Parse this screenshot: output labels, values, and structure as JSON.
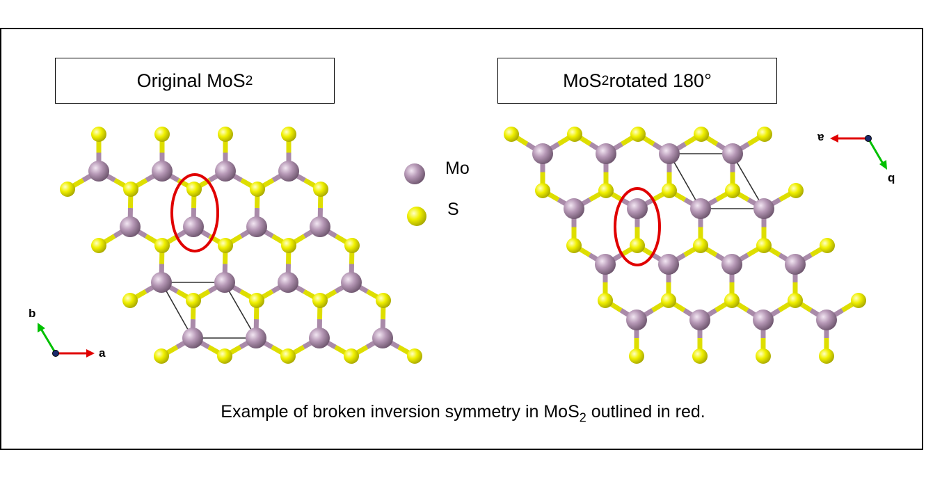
{
  "left_panel": {
    "title_main": "Original MoS",
    "title_sub": "2",
    "title_tail": ""
  },
  "right_panel": {
    "title_main": "MoS",
    "title_sub": "2",
    "title_tail": " rotated 180°"
  },
  "legend": [
    {
      "element": "Mo",
      "color": "#b08fb0"
    },
    {
      "element": "S",
      "color": "#e6e600"
    }
  ],
  "axes_left": {
    "a_label": "a",
    "b_label": "b"
  },
  "axes_right": {
    "a_label": "a",
    "b_label": "b"
  },
  "caption": {
    "before": "Example of broken inversion symmetry in MoS",
    "sub": "2",
    "after": " outlined in red."
  },
  "colors": {
    "mo_atom": "#a98aa9",
    "s_atom": "#e3e300",
    "bond_s": "#dede00",
    "bond_mo": "#a98aa9",
    "highlight": "#e00000",
    "axis_a": "#e00000",
    "axis_b": "#00c000",
    "axis_c": "#1a2a6c"
  }
}
